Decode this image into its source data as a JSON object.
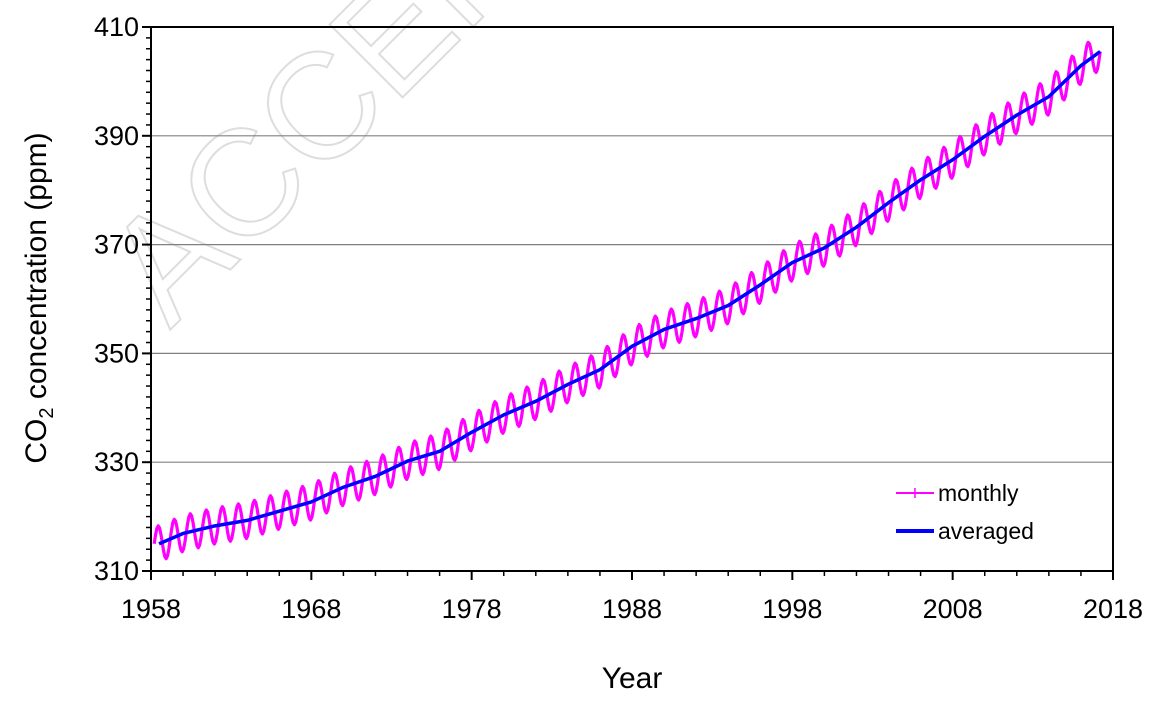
{
  "watermark": "ACCEPTED",
  "chart_data": {
    "type": "line",
    "title": "",
    "xlabel": "Year",
    "ylabel_main": "CO",
    "ylabel_sub": "2",
    "ylabel_rest": " concentration (ppm)",
    "xlim": [
      1958,
      2018
    ],
    "ylim": [
      310,
      410
    ],
    "x_ticks": [
      1958,
      1968,
      1978,
      1988,
      1998,
      2008,
      2018
    ],
    "y_ticks": [
      310,
      330,
      350,
      370,
      390,
      410
    ],
    "grid": "horizontal",
    "legend_position": "bottom-right",
    "colors": {
      "monthly": "#ff00ff",
      "averaged": "#0000ff",
      "grid": "#808080",
      "axis": "#000000"
    },
    "series": [
      {
        "name": "averaged",
        "x": [
          1958.5,
          1960,
          1962,
          1964,
          1966,
          1968,
          1970,
          1972,
          1974,
          1976,
          1978,
          1980,
          1982,
          1984,
          1986,
          1988,
          1990,
          1992,
          1994,
          1996,
          1998,
          2000,
          2002,
          2004,
          2006,
          2008,
          2010,
          2012,
          2014,
          2016,
          2017.2
        ],
        "y": [
          315.0,
          316.9,
          318.3,
          319.3,
          321.0,
          322.7,
          325.4,
          327.4,
          330.2,
          332.0,
          335.5,
          338.7,
          341.2,
          344.3,
          347.0,
          351.3,
          354.4,
          356.4,
          358.8,
          362.6,
          366.7,
          369.4,
          373.2,
          377.7,
          381.9,
          385.6,
          389.9,
          393.8,
          397.2,
          402.9,
          405.5
        ]
      },
      {
        "name": "monthly",
        "seasonal_amplitude_ppm": 3.3,
        "x_start": 1958.2,
        "x_end": 2017.2
      }
    ]
  }
}
